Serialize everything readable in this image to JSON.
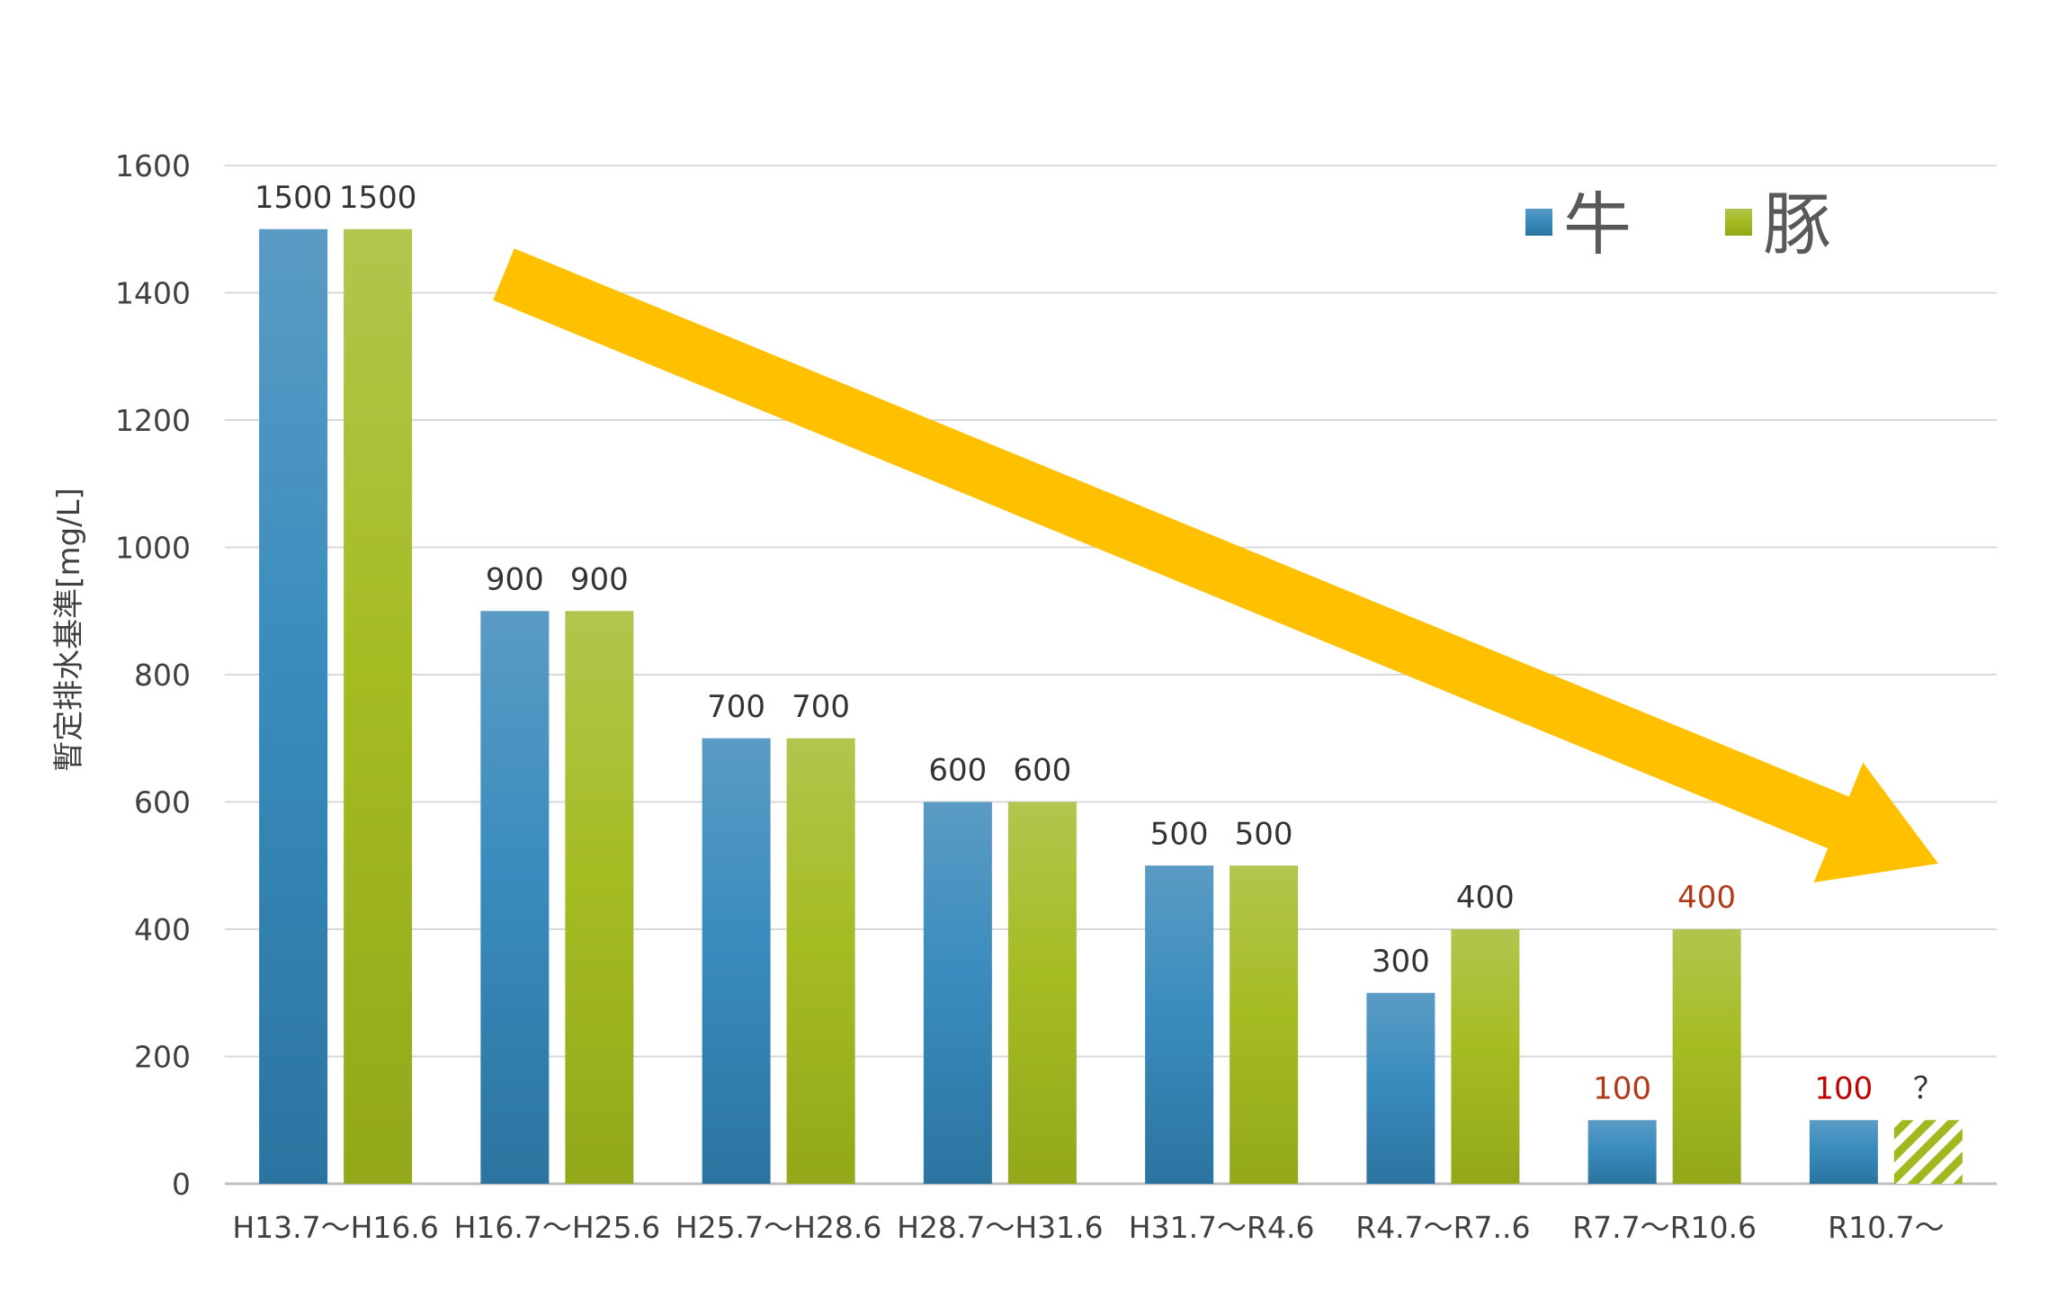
{
  "chart_data": {
    "type": "bar",
    "title": "",
    "xlabel": "",
    "ylabel": "暫定排水基準[mg/L]",
    "ylim": [
      0,
      1600
    ],
    "yticks": [
      0,
      200,
      400,
      600,
      800,
      1000,
      1200,
      1400,
      1600
    ],
    "yticks_labels": [
      "0",
      "200",
      "400",
      "600",
      "800",
      "1000",
      "1200",
      "1400",
      "1600"
    ],
    "grid": true,
    "legend_position": "top-right",
    "categories": [
      "H13.7〜H16.6",
      "H16.7〜H25.6",
      "H25.7〜H28.6",
      "H28.7〜H31.6",
      "H31.7〜R4.6",
      "R4.7〜R7..6",
      "R7.7〜R10.6",
      "R10.7〜"
    ],
    "series": [
      {
        "name": "牛",
        "color": "#2e86b8",
        "values": [
          1500,
          900,
          700,
          600,
          500,
          300,
          100,
          100
        ],
        "labels": [
          "1500",
          "900",
          "700",
          "600",
          "500",
          "300",
          "100",
          "100"
        ],
        "label_colors": [
          "#333333",
          "#333333",
          "#333333",
          "#333333",
          "#333333",
          "#333333",
          "#b03a1a",
          "#c00000"
        ]
      },
      {
        "name": "豚",
        "color": "#a2b81e",
        "values": [
          1500,
          900,
          700,
          600,
          500,
          400,
          400,
          100
        ],
        "labels": [
          "1500",
          "900",
          "700",
          "600",
          "500",
          "400",
          "400",
          "？"
        ],
        "label_colors": [
          "#333333",
          "#333333",
          "#333333",
          "#333333",
          "#333333",
          "#333333",
          "#b03a1a",
          "#333333"
        ],
        "hatched": [
          false,
          false,
          false,
          false,
          false,
          false,
          false,
          true
        ]
      }
    ],
    "annotation": {
      "type": "arrow",
      "direction": "down-right",
      "color": "#ffc000"
    },
    "colors": {
      "grid": "#d9d9d9",
      "axis": "#bfbfbf",
      "text": "#404040"
    }
  }
}
